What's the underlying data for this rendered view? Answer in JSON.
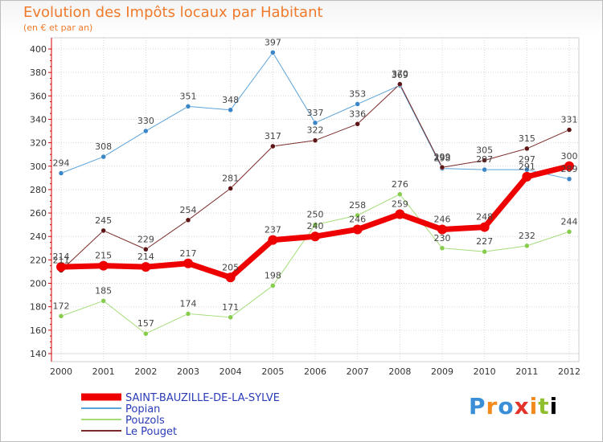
{
  "title": "Evolution des Impôts locaux par Habitant",
  "subtitle": "(en € et par an)",
  "logo": [
    "P",
    "r",
    "o",
    "x",
    "i",
    "t",
    "i"
  ],
  "colors": {
    "title": "#f07a2c",
    "grid": "#d8d8d8",
    "axis": "#cc0000"
  },
  "chart_data": {
    "type": "line",
    "x": [
      2000,
      2001,
      2002,
      2003,
      2004,
      2005,
      2006,
      2007,
      2008,
      2009,
      2010,
      2011,
      2012
    ],
    "ylim": [
      140,
      400
    ],
    "yticks": [
      140,
      160,
      180,
      200,
      220,
      240,
      260,
      280,
      300,
      320,
      340,
      360,
      380,
      400
    ],
    "grid": true,
    "legend_position": "bottom-left",
    "series": [
      {
        "name": "Popian",
        "color": "#5ba3d9",
        "point_color": "#3a86c8",
        "width": 1,
        "values": [
          294,
          308,
          330,
          351,
          348,
          397,
          337,
          353,
          369,
          298,
          297,
          297,
          289
        ],
        "labels": [
          "294",
          "308",
          "330",
          "351",
          "348",
          "397",
          "337",
          "353",
          "369",
          "298",
          "297",
          "297",
          "289"
        ]
      },
      {
        "name": "Pouzols",
        "color": "#a6dd7a",
        "point_color": "#88cc4e",
        "width": 1,
        "values": [
          172,
          185,
          157,
          174,
          171,
          198,
          250,
          258,
          276,
          230,
          227,
          232,
          244
        ],
        "labels": [
          "172",
          "185",
          "157",
          "174",
          "171",
          "198",
          "250",
          "258",
          "276",
          "230",
          "227",
          "232",
          "244"
        ]
      },
      {
        "name": "Le Pouget",
        "color": "#7a2a2a",
        "point_color": "#5e1515",
        "width": 1,
        "values": [
          211,
          245,
          229,
          254,
          281,
          317,
          322,
          336,
          370,
          299,
          305,
          315,
          331
        ],
        "labels": [
          "211",
          "245",
          "229",
          "254",
          "281",
          "317",
          "322",
          "336",
          "370",
          "299",
          "305",
          "315",
          "331"
        ]
      },
      {
        "name": "SAINT-BAUZILLE-DE-LA-SYLVE",
        "color": "#ee0000",
        "point_color": "#ee0000",
        "width": 7,
        "values": [
          214,
          215,
          214,
          217,
          205,
          237,
          240,
          246,
          259,
          246,
          248,
          291,
          300
        ],
        "labels": [
          "214",
          "215",
          "214",
          "217",
          "205",
          "237",
          "240",
          "246",
          "259",
          "246",
          "248",
          "291",
          "300"
        ]
      }
    ]
  }
}
